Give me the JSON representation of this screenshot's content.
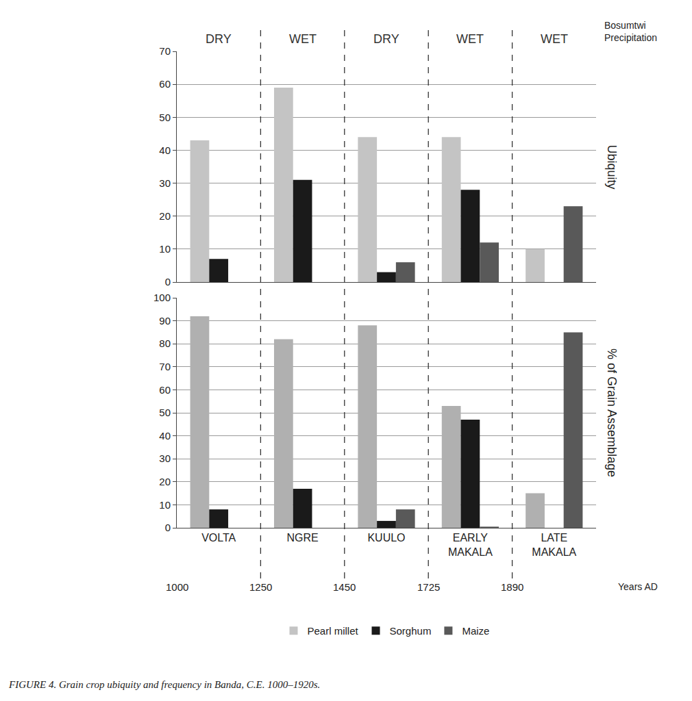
{
  "caption": "FIGURE 4. Grain crop ubiquity and frequency in Banda, C.E. 1000–1920s.",
  "precipitation_header": "Bosumtwi Precipitation",
  "precipitation": [
    "DRY",
    "WET",
    "DRY",
    "WET",
    "WET"
  ],
  "period_boundaries": [
    1000,
    1250,
    1450,
    1725,
    1890
  ],
  "years_label": "Years AD",
  "chart_data": [
    {
      "type": "bar",
      "y_label": "Ubiquity",
      "categories": [
        "VOLTA",
        "NGRE",
        "KUULO",
        "EARLY MAKALA",
        "LATE MAKALA"
      ],
      "series": [
        {
          "name": "Pearl millet",
          "color": "#c4c4c4",
          "values": [
            43,
            59,
            44,
            44,
            10
          ]
        },
        {
          "name": "Sorghum",
          "color": "#1a1a1a",
          "values": [
            7,
            31,
            3,
            28,
            null
          ]
        },
        {
          "name": "Maize",
          "color": "#595959",
          "values": [
            null,
            null,
            6,
            12,
            23
          ]
        }
      ],
      "ylim": [
        0,
        70
      ],
      "yticks": [
        0,
        10,
        20,
        30,
        40,
        50,
        60,
        70
      ],
      "grid": true,
      "legend": "bottom"
    },
    {
      "type": "bar",
      "y_label": "% of Grain Assemblage",
      "categories": [
        "VOLTA",
        "NGRE",
        "KUULO",
        "EARLY MAKALA",
        "LATE MAKALA"
      ],
      "series": [
        {
          "name": "Pearl millet",
          "color": "#b0b0b0",
          "values": [
            92,
            82,
            88,
            53,
            15
          ]
        },
        {
          "name": "Sorghum",
          "color": "#1a1a1a",
          "values": [
            8,
            17,
            3,
            47,
            null
          ]
        },
        {
          "name": "Maize",
          "color": "#595959",
          "values": [
            null,
            null,
            8,
            0.5,
            85
          ]
        }
      ],
      "ylim": [
        0,
        100
      ],
      "yticks": [
        0,
        10,
        20,
        30,
        40,
        50,
        60,
        70,
        80,
        90,
        100
      ],
      "grid": true
    }
  ]
}
